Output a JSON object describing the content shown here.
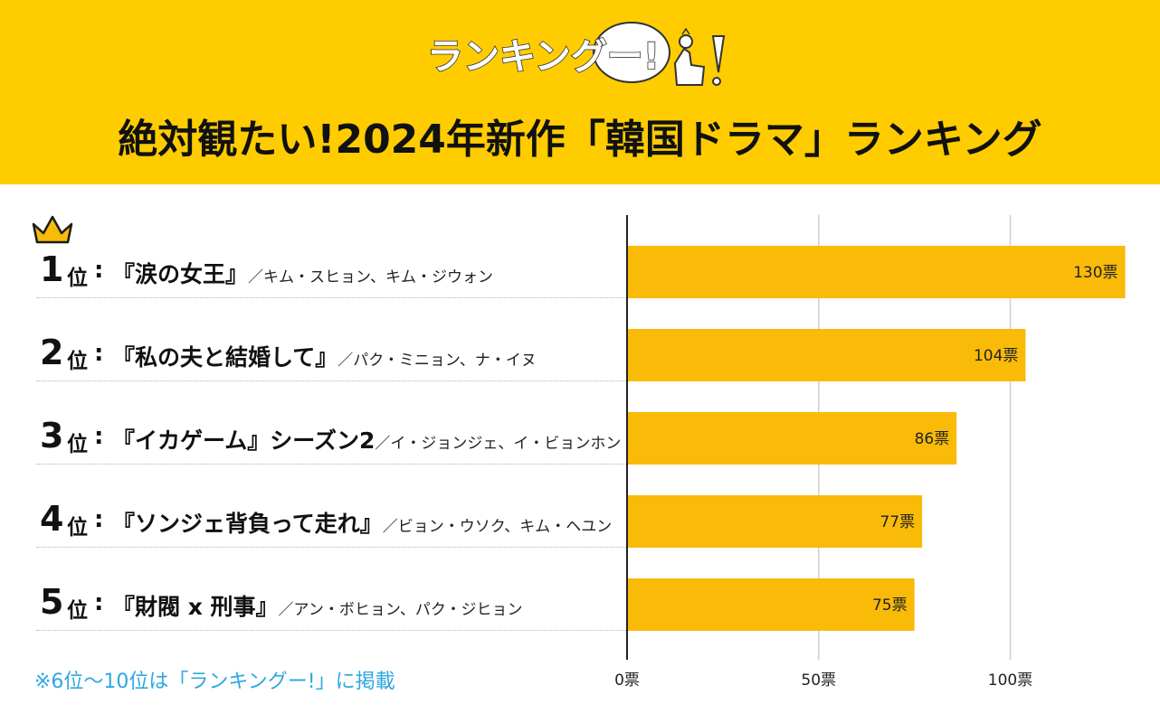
{
  "logo_text": "ランキングー!",
  "title": "絶対観たい!2024年新作「韓国ドラマ」ランキング",
  "footnote": "※6位〜10位は「ランキングー!」に掲載",
  "colors": {
    "header_bg": "#FFCC00",
    "bar": "#F9BB08",
    "footnote": "#2EA8E0"
  },
  "rank_suffix": "位",
  "colon": ":",
  "rows": [
    {
      "rank": "1",
      "drama": "『涙の女王』",
      "cast": "／キム・スヒョン、キム・ジウォン"
    },
    {
      "rank": "2",
      "drama": "『私の夫と結婚して』",
      "cast": "／パク・ミニョン、ナ・イヌ"
    },
    {
      "rank": "3",
      "drama": "『イカゲーム』シーズン2",
      "cast": "／イ・ジョンジェ、イ・ビョンホン"
    },
    {
      "rank": "4",
      "drama": "『ソンジェ背負って走れ』",
      "cast": "／ビョン・ウソク、キム・ヘユン"
    },
    {
      "rank": "5",
      "drama": "『財閥 x 刑事』",
      "cast": "／アン・ボヒョン、パク・ジヒョン"
    }
  ],
  "chart_data": {
    "type": "bar",
    "orientation": "horizontal",
    "categories": [
      "『涙の女王』",
      "『私の夫と結婚して』",
      "『イカゲーム』シーズン2",
      "『ソンジェ背負って走れ』",
      "『財閥 x 刑事』"
    ],
    "values": [
      130,
      104,
      86,
      77,
      75
    ],
    "value_labels": [
      "130票",
      "104票",
      "86票",
      "77票",
      "75票"
    ],
    "xlim": [
      0,
      130
    ],
    "ticks": [
      0,
      50,
      100
    ],
    "tick_labels": [
      "0票",
      "50票",
      "100票"
    ],
    "unit": "票",
    "grid": true
  }
}
